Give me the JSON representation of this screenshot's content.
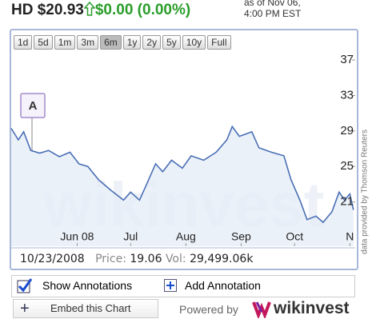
{
  "header": {
    "symbol": "HD",
    "price": "$20.93",
    "change": "$0.00 (0.00%)",
    "as_of": [
      "as of Nov 06,",
      "4:00 PM EST"
    ]
  },
  "range_buttons": [
    "1d",
    "5d",
    "1m",
    "3m",
    "6m",
    "1y",
    "2y",
    "5y",
    "10y",
    "Full"
  ],
  "selected_range": 4,
  "chart_data": {
    "type": "line",
    "x": [
      116,
      120,
      123,
      127,
      132,
      137,
      143,
      149,
      154,
      159,
      165,
      172,
      179,
      183,
      188,
      192,
      197,
      201,
      206,
      212,
      217,
      224,
      231,
      237,
      240,
      244,
      251,
      255,
      262,
      269,
      273,
      278,
      282,
      287,
      291,
      296,
      300,
      303,
      306,
      308
    ],
    "series": [
      {
        "name": "HD",
        "color": "#4a6fb5",
        "values": [
          29.3,
          28.0,
          28.9,
          26.8,
          26.5,
          26.8,
          26.1,
          26.6,
          25.3,
          25.0,
          23.5,
          22.3,
          21.2,
          22.1,
          21.2,
          23.0,
          25.3,
          24.4,
          25.7,
          24.8,
          26.2,
          25.7,
          26.6,
          28.0,
          29.5,
          28.4,
          28.9,
          27.1,
          26.6,
          26.2,
          23.5,
          21.2,
          19.0,
          19.4,
          18.7,
          19.9,
          22.1,
          21.2,
          21.9,
          20.1
        ]
      }
    ],
    "xlim": [
      116,
      309
    ],
    "xticks": [
      {
        "value": 153,
        "label": "Jun 08"
      },
      {
        "value": 183,
        "label": "Jul"
      },
      {
        "value": 214,
        "label": "Aug"
      },
      {
        "value": 245,
        "label": "Sep"
      },
      {
        "value": 275,
        "label": "Oct"
      },
      {
        "value": 306,
        "label": "N"
      }
    ],
    "ylim": [
      16,
      38
    ],
    "yticks": [
      21,
      25,
      29,
      33,
      37
    ],
    "annotation": "A",
    "watermark": "wikinvest",
    "credit": "data provided by Thomson Reuters"
  },
  "info": {
    "date": "10/23/2008",
    "price_label": "Price:",
    "price": 19.06,
    "vol_label": "Vol:",
    "vol": "29,499.06k"
  },
  "controls": {
    "show_annotations": "Show Annotations",
    "add_annotation": "Add Annotation",
    "embed": "Embed this Chart",
    "powered_by": "Powered by",
    "brand": "wikinvest"
  }
}
